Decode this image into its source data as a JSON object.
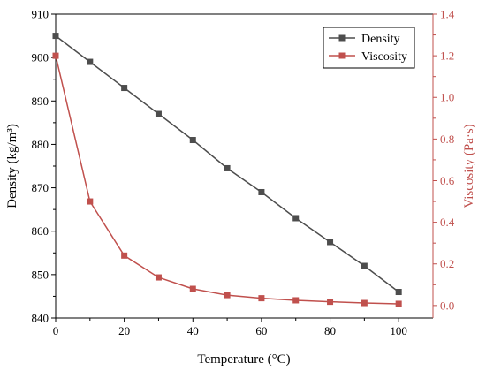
{
  "chart_data": {
    "type": "line",
    "x": [
      0,
      10,
      20,
      30,
      40,
      50,
      60,
      70,
      80,
      90,
      100
    ],
    "xlabel": "Temperature (°C)",
    "xlim": [
      0,
      110
    ],
    "xticks": [
      0,
      20,
      40,
      60,
      80,
      100
    ],
    "left_axis": {
      "label": "Density (kg/m³)",
      "ylim": [
        840,
        910
      ],
      "ticks": [
        840,
        850,
        860,
        870,
        880,
        890,
        900,
        910
      ],
      "color": "#000000"
    },
    "right_axis": {
      "label": "Viscosity (Pa·s)",
      "ylim": [
        -0.06,
        1.4
      ],
      "ticks": [
        0.0,
        0.2,
        0.4,
        0.6,
        0.8,
        1.0,
        1.2,
        1.4
      ],
      "tick_labels": [
        "0.0",
        "0.2",
        "0.4",
        "0.6",
        "0.8",
        "1.0",
        "1.2",
        "1.4"
      ],
      "color": "#c0504d"
    },
    "series": [
      {
        "name": "Density",
        "axis": "left",
        "color": "#4d4d4d",
        "marker": "square",
        "values": [
          905,
          899,
          893,
          887,
          881,
          874.5,
          869,
          863,
          857.5,
          852,
          846
        ]
      },
      {
        "name": "Viscosity",
        "axis": "right",
        "color": "#c0504d",
        "marker": "square",
        "values": [
          1.2,
          0.5,
          0.24,
          0.135,
          0.08,
          0.05,
          0.035,
          0.025,
          0.018,
          0.012,
          0.008
        ]
      }
    ],
    "legend": "top-right",
    "grid": false
  }
}
